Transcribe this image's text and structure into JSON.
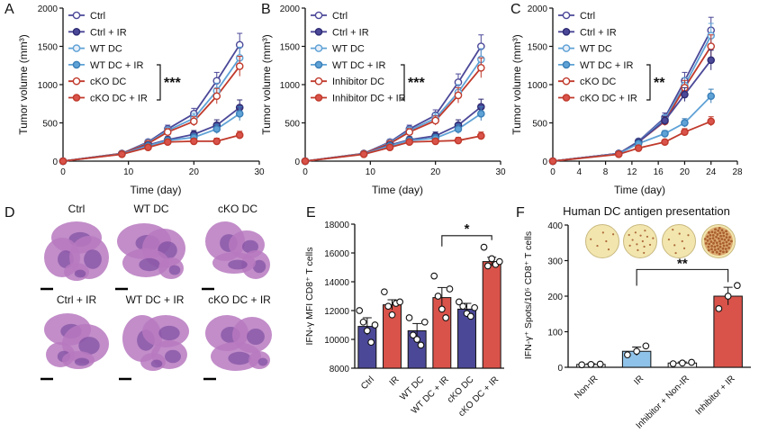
{
  "colors": {
    "ctrl": "#ffffff",
    "ctrl_ir": "#4b4898",
    "wt": "#e6eef8",
    "wt_ir": "#5fa2d6",
    "ko": "#ffffff",
    "ko_ir": "#d9534a",
    "ko_stroke": "#c0392b",
    "bar_blue": "#4b4898",
    "bar_red": "#d9534a",
    "bar_light": "#8fc2e8",
    "tissue": "#b779bf",
    "tissue_dark": "#6b3f98",
    "well_bg": "#f2e6ae",
    "well_spot": "#9c4b1e"
  },
  "panel_letters": [
    "A",
    "B",
    "C",
    "D",
    "E",
    "F"
  ],
  "chart_data": [
    {
      "id": "A",
      "type": "line",
      "xlabel": "Time (day)",
      "ylabel": "Tumor volume (mm³)",
      "xlim": [
        0,
        30
      ],
      "ylim": [
        0,
        2000
      ],
      "xticks": [
        "0",
        "10",
        "20",
        "30"
      ],
      "yticks": [
        "0",
        "500",
        "1000",
        "1500",
        "2000"
      ],
      "x": [
        0,
        9,
        13,
        16,
        20,
        23.5,
        27
      ],
      "significance": "***",
      "series": [
        {
          "name": "Ctrl",
          "values": [
            0,
            100,
            250,
            420,
            620,
            1050,
            1520
          ],
          "err": [
            0,
            15,
            30,
            50,
            70,
            110,
            150
          ]
        },
        {
          "name": "Ctrl + IR",
          "values": [
            0,
            95,
            210,
            280,
            350,
            470,
            700
          ],
          "err": [
            0,
            15,
            25,
            40,
            50,
            70,
            100
          ]
        },
        {
          "name": "WT DC",
          "values": [
            0,
            100,
            240,
            400,
            560,
            920,
            1350
          ],
          "err": [
            0,
            15,
            30,
            45,
            65,
            100,
            140
          ]
        },
        {
          "name": "WT DC + IR",
          "values": [
            0,
            95,
            200,
            270,
            310,
            420,
            620
          ],
          "err": [
            0,
            15,
            25,
            35,
            45,
            60,
            90
          ]
        },
        {
          "name": "cKO DC",
          "values": [
            0,
            100,
            230,
            380,
            520,
            850,
            1240
          ],
          "err": [
            0,
            15,
            30,
            45,
            60,
            100,
            130
          ]
        },
        {
          "name": "cKO DC + IR",
          "values": [
            0,
            90,
            180,
            250,
            260,
            260,
            340
          ],
          "err": [
            0,
            15,
            25,
            30,
            35,
            40,
            50
          ]
        }
      ]
    },
    {
      "id": "B",
      "type": "line",
      "xlabel": "Time (day)",
      "ylabel": "Tumor volume (mm³)",
      "xlim": [
        0,
        30
      ],
      "ylim": [
        0,
        2000
      ],
      "xticks": [
        "0",
        "10",
        "20",
        "30"
      ],
      "yticks": [
        "0",
        "500",
        "1000",
        "1500",
        "2000"
      ],
      "x": [
        0,
        9,
        13,
        16,
        20,
        23.5,
        27
      ],
      "significance": "***",
      "series": [
        {
          "name": "Ctrl",
          "values": [
            0,
            100,
            250,
            420,
            600,
            1030,
            1500
          ],
          "err": [
            0,
            15,
            30,
            50,
            70,
            110,
            150
          ]
        },
        {
          "name": "Ctrl + IR",
          "values": [
            0,
            95,
            210,
            280,
            330,
            470,
            710
          ],
          "err": [
            0,
            15,
            25,
            40,
            50,
            70,
            100
          ]
        },
        {
          "name": "WT DC",
          "values": [
            0,
            100,
            240,
            400,
            560,
            900,
            1330
          ],
          "err": [
            0,
            15,
            30,
            45,
            65,
            100,
            140
          ]
        },
        {
          "name": "WT DC + IR",
          "values": [
            0,
            95,
            200,
            270,
            300,
            420,
            620
          ],
          "err": [
            0,
            15,
            25,
            35,
            45,
            60,
            90
          ]
        },
        {
          "name": "Inhibitor DC",
          "values": [
            0,
            100,
            230,
            380,
            530,
            860,
            1220
          ],
          "err": [
            0,
            15,
            30,
            45,
            60,
            100,
            130
          ]
        },
        {
          "name": "Inhibitor DC + IR",
          "values": [
            0,
            90,
            180,
            250,
            260,
            270,
            330
          ],
          "err": [
            0,
            15,
            25,
            30,
            35,
            40,
            50
          ]
        }
      ]
    },
    {
      "id": "C",
      "type": "line",
      "xlabel": "Time (day)",
      "ylabel": "Tumor volume (mm³)",
      "xlim": [
        0,
        28
      ],
      "ylim": [
        0,
        2000
      ],
      "xticks": [
        "0",
        "4",
        "8",
        "12",
        "16",
        "20",
        "24",
        "28"
      ],
      "yticks": [
        "0",
        "500",
        "1000",
        "1500",
        "2000"
      ],
      "x": [
        0,
        10,
        13,
        17,
        20,
        24
      ],
      "significance": "**",
      "series": [
        {
          "name": "Ctrl",
          "values": [
            0,
            100,
            260,
            570,
            1050,
            1710
          ],
          "err": [
            0,
            15,
            30,
            60,
            110,
            170
          ]
        },
        {
          "name": "Ctrl + IR",
          "values": [
            0,
            100,
            250,
            530,
            870,
            1320
          ],
          "err": [
            0,
            15,
            30,
            55,
            90,
            130
          ]
        },
        {
          "name": "WT DC",
          "values": [
            0,
            100,
            255,
            550,
            990,
            1640
          ],
          "err": [
            0,
            15,
            30,
            55,
            100,
            160
          ]
        },
        {
          "name": "WT DC + IR",
          "values": [
            0,
            95,
            230,
            360,
            500,
            850
          ],
          "err": [
            0,
            15,
            25,
            40,
            55,
            90
          ]
        },
        {
          "name": "cKO DC",
          "values": [
            0,
            100,
            250,
            520,
            960,
            1500
          ],
          "err": [
            0,
            15,
            30,
            55,
            95,
            150
          ]
        },
        {
          "name": "cKO DC + IR",
          "values": [
            0,
            90,
            170,
            250,
            380,
            520
          ],
          "err": [
            0,
            15,
            20,
            30,
            45,
            60
          ]
        }
      ]
    },
    {
      "id": "E",
      "type": "bar",
      "ylabel": "IFN-γ MFI CD8⁺ T cells",
      "ylim": [
        8000,
        18000
      ],
      "yticks": [
        "8000",
        "10000",
        "12000",
        "14000",
        "16000",
        "18000"
      ],
      "categories": [
        "Ctrl",
        "IR",
        "WT DC",
        "WT DC + IR",
        "cKO DC",
        "cKO DC + IR"
      ],
      "values": [
        10900,
        12400,
        10600,
        12900,
        12100,
        15400
      ],
      "err": [
        600,
        350,
        500,
        700,
        400,
        300
      ],
      "points": [
        [
          12000,
          11200,
          10600,
          9800,
          11000
        ],
        [
          13300,
          12300,
          11700,
          12500,
          12600
        ],
        [
          11500,
          10300,
          10000,
          9600,
          11200
        ],
        [
          14400,
          13000,
          12100,
          11500,
          13500
        ],
        [
          12600,
          12300,
          11800,
          11600,
          12200
        ],
        [
          16400,
          15100,
          15600,
          15200,
          15400
        ]
      ],
      "significance": "*"
    },
    {
      "id": "F",
      "type": "bar",
      "title": "Human DC antigen presentation",
      "ylabel": "IFN-γ⁺ Spots/10⁵ CD8⁺ T cells",
      "ylim": [
        0,
        400
      ],
      "yticks": [
        "0",
        "100",
        "200",
        "300",
        "400"
      ],
      "categories": [
        "Non-IR",
        "IR",
        "Inhibitor + Non-IR",
        "Inhibitor + IR"
      ],
      "values": [
        8,
        45,
        12,
        200
      ],
      "err": [
        2,
        12,
        3,
        25
      ],
      "points": [
        [
          7,
          8,
          9
        ],
        [
          35,
          45,
          60
        ],
        [
          10,
          12,
          14
        ],
        [
          165,
          200,
          230
        ]
      ],
      "significance": "**"
    }
  ],
  "histology": {
    "labels": [
      "Ctrl",
      "WT DC",
      "cKO DC",
      "Ctrl + IR",
      "WT DC + IR",
      "cKO DC + IR"
    ]
  }
}
